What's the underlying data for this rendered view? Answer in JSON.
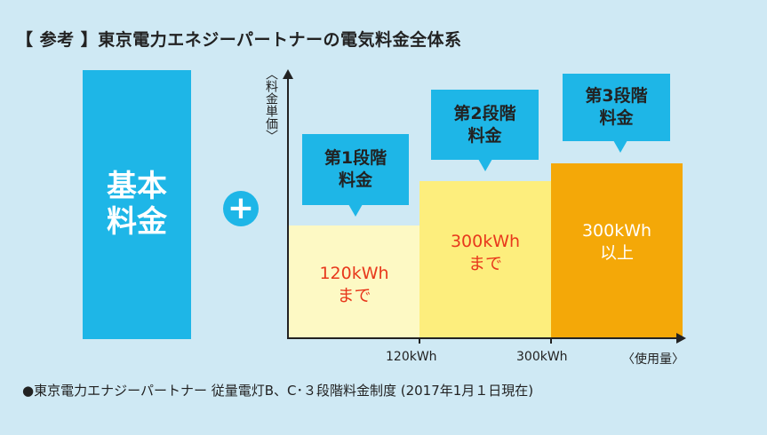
{
  "title": "【 参考 】東京電力エネジーパートナーの電気料金全体系",
  "base_charge": "基本\n料金",
  "plus_symbol": "+",
  "y_axis_label": "〈料金単価〉",
  "x_axis": {
    "tick_1": "120kWh",
    "tick_2": "300kWh",
    "end_label": "〈使用量〉"
  },
  "tiers": [
    {
      "callout": "第1段階\n料金",
      "text": "120kWh\nまで"
    },
    {
      "callout": "第2段階\n料金",
      "text": "300kWh\nまで"
    },
    {
      "callout": "第3段階\n料金",
      "text": "300kWh\n以上"
    }
  ],
  "footnote": "●東京電力エナジーパートナー 従量電灯B、C･３段階料金制度 (2017年1月１日現在)"
}
